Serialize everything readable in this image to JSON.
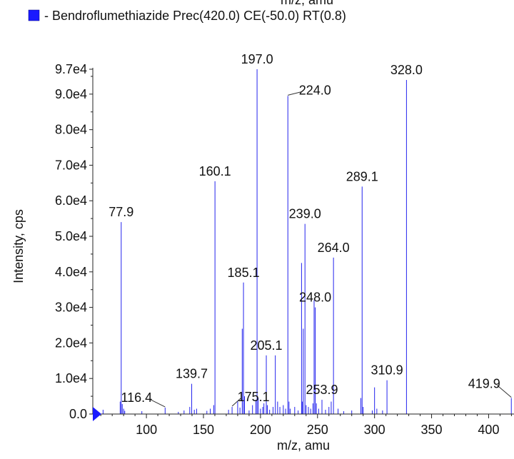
{
  "chart_data": {
    "type": "bar",
    "title": "",
    "top_cut_text": "m/z, amu",
    "legend": {
      "label": "- Bendroflumethiazide  Prec(420.0) CE(-50.0) RT(0.8)",
      "color": "#1a1aff",
      "position": "top-left"
    },
    "xlabel": "m/z, amu",
    "ylabel": "Intensity, cps",
    "xlim": [
      53,
      421
    ],
    "ylim": [
      0,
      97000
    ],
    "x_ticks": [
      {
        "value": 100,
        "label": "100"
      },
      {
        "value": 150,
        "label": "150"
      },
      {
        "value": 200,
        "label": "200"
      },
      {
        "value": 250,
        "label": "250"
      },
      {
        "value": 300,
        "label": "300"
      },
      {
        "value": 350,
        "label": "350"
      },
      {
        "value": 400,
        "label": "400"
      }
    ],
    "y_ticks": [
      {
        "value": 0,
        "label": "0.0"
      },
      {
        "value": 10000,
        "label": "1.0e4"
      },
      {
        "value": 20000,
        "label": "2.0e4"
      },
      {
        "value": 30000,
        "label": "3.0e4"
      },
      {
        "value": 40000,
        "label": "4.0e4"
      },
      {
        "value": 50000,
        "label": "5.0e4"
      },
      {
        "value": 60000,
        "label": "6.0e4"
      },
      {
        "value": 70000,
        "label": "7.0e4"
      },
      {
        "value": 80000,
        "label": "8.0e4"
      },
      {
        "value": 90000,
        "label": "9.0e4"
      },
      {
        "value": 97000,
        "label": "9.7e4"
      }
    ],
    "bar_color": "#2323ee",
    "grid": false,
    "peaks": [
      {
        "mz": 62.0,
        "intensity": 1200
      },
      {
        "mz": 77.0,
        "intensity": 3500
      },
      {
        "mz": 77.9,
        "intensity": 54000,
        "label": "77.9"
      },
      {
        "mz": 78.8,
        "intensity": 2800
      },
      {
        "mz": 80.0,
        "intensity": 1500
      },
      {
        "mz": 81.0,
        "intensity": 900
      },
      {
        "mz": 96.0,
        "intensity": 800
      },
      {
        "mz": 116.4,
        "intensity": 1800,
        "label": "116.4"
      },
      {
        "mz": 128.0,
        "intensity": 600
      },
      {
        "mz": 133.0,
        "intensity": 1000
      },
      {
        "mz": 138.0,
        "intensity": 2000
      },
      {
        "mz": 139.7,
        "intensity": 8500,
        "label": "139.7"
      },
      {
        "mz": 142.0,
        "intensity": 1200
      },
      {
        "mz": 144.0,
        "intensity": 1500
      },
      {
        "mz": 153.0,
        "intensity": 900
      },
      {
        "mz": 156.0,
        "intensity": 1500
      },
      {
        "mz": 159.0,
        "intensity": 2500
      },
      {
        "mz": 160.1,
        "intensity": 65500,
        "label": "160.1"
      },
      {
        "mz": 172.0,
        "intensity": 1200
      },
      {
        "mz": 175.1,
        "intensity": 2000,
        "label": "175.1"
      },
      {
        "mz": 180.0,
        "intensity": 3500
      },
      {
        "mz": 182.0,
        "intensity": 1800
      },
      {
        "mz": 184.0,
        "intensity": 24000
      },
      {
        "mz": 185.1,
        "intensity": 37000,
        "label": "185.1"
      },
      {
        "mz": 186.0,
        "intensity": 5000
      },
      {
        "mz": 190.0,
        "intensity": 1000
      },
      {
        "mz": 193.0,
        "intensity": 2500
      },
      {
        "mz": 196.0,
        "intensity": 4000
      },
      {
        "mz": 197.0,
        "intensity": 97000,
        "label": "197.0"
      },
      {
        "mz": 198.0,
        "intensity": 4500
      },
      {
        "mz": 200.0,
        "intensity": 1500
      },
      {
        "mz": 202.0,
        "intensity": 2000
      },
      {
        "mz": 203.0,
        "intensity": 3000
      },
      {
        "mz": 205.1,
        "intensity": 16500,
        "label": "205.1"
      },
      {
        "mz": 206.0,
        "intensity": 2500
      },
      {
        "mz": 208.0,
        "intensity": 1200
      },
      {
        "mz": 211.0,
        "intensity": 2000
      },
      {
        "mz": 213.0,
        "intensity": 16500
      },
      {
        "mz": 215.0,
        "intensity": 3500
      },
      {
        "mz": 217.0,
        "intensity": 2000
      },
      {
        "mz": 220.0,
        "intensity": 2500
      },
      {
        "mz": 222.0,
        "intensity": 1500
      },
      {
        "mz": 224.0,
        "intensity": 89500,
        "label": "224.0"
      },
      {
        "mz": 225.0,
        "intensity": 3500
      },
      {
        "mz": 226.0,
        "intensity": 1500
      },
      {
        "mz": 230.0,
        "intensity": 2000
      },
      {
        "mz": 233.0,
        "intensity": 1000
      },
      {
        "mz": 236.0,
        "intensity": 42500
      },
      {
        "mz": 236.6,
        "intensity": 3500
      },
      {
        "mz": 237.5,
        "intensity": 24000
      },
      {
        "mz": 239.0,
        "intensity": 53500,
        "label": "239.0"
      },
      {
        "mz": 240.0,
        "intensity": 2500
      },
      {
        "mz": 242.0,
        "intensity": 2000
      },
      {
        "mz": 244.0,
        "intensity": 1500
      },
      {
        "mz": 246.0,
        "intensity": 3000
      },
      {
        "mz": 247.0,
        "intensity": 32000
      },
      {
        "mz": 248.0,
        "intensity": 30000,
        "label": "248.0"
      },
      {
        "mz": 249.0,
        "intensity": 3000
      },
      {
        "mz": 251.0,
        "intensity": 1500
      },
      {
        "mz": 253.9,
        "intensity": 4000,
        "label": "253.9"
      },
      {
        "mz": 257.0,
        "intensity": 1200
      },
      {
        "mz": 260.0,
        "intensity": 2000
      },
      {
        "mz": 262.0,
        "intensity": 3500
      },
      {
        "mz": 264.0,
        "intensity": 44000,
        "label": "264.0"
      },
      {
        "mz": 268.0,
        "intensity": 1500
      },
      {
        "mz": 273.0,
        "intensity": 800
      },
      {
        "mz": 280.0,
        "intensity": 1000
      },
      {
        "mz": 288.0,
        "intensity": 4500
      },
      {
        "mz": 289.1,
        "intensity": 64000,
        "label": "289.1"
      },
      {
        "mz": 290.0,
        "intensity": 2000
      },
      {
        "mz": 298.0,
        "intensity": 1000
      },
      {
        "mz": 300.0,
        "intensity": 7500
      },
      {
        "mz": 302.0,
        "intensity": 1500
      },
      {
        "mz": 307.0,
        "intensity": 1000
      },
      {
        "mz": 310.9,
        "intensity": 9500,
        "label": "310.9"
      },
      {
        "mz": 328.0,
        "intensity": 94000,
        "label": "328.0"
      },
      {
        "mz": 419.9,
        "intensity": 4500,
        "label": "419.9"
      }
    ]
  }
}
